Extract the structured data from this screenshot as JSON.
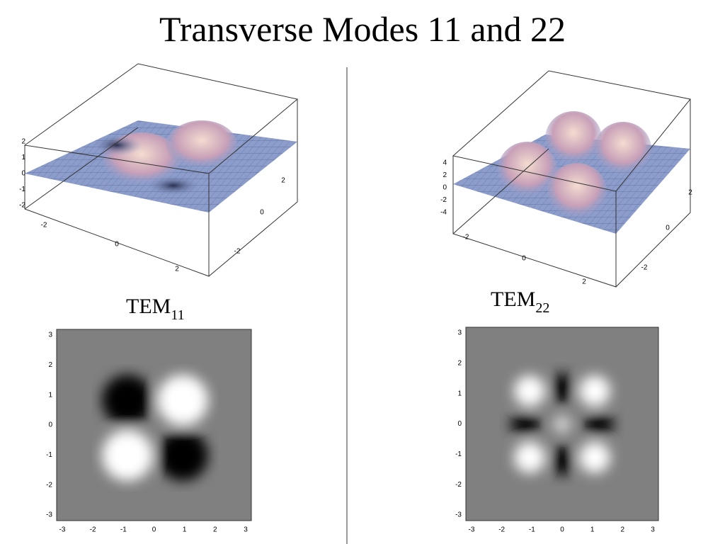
{
  "title": "Transverse Modes 11 and 22",
  "panels": [
    {
      "label": "TEM",
      "subscript": "11",
      "surface": {
        "z_ticks": [
          "2",
          "1",
          "0",
          "-1",
          "-2"
        ],
        "x_ticks": [
          "-2",
          "0",
          "2"
        ],
        "y_ticks": [
          "2",
          "0",
          "-2"
        ]
      },
      "density": {
        "y_ticks": [
          "3",
          "2",
          "1",
          "0",
          "-1",
          "-2",
          "-3"
        ],
        "x_ticks": [
          "-3",
          "-2",
          "-1",
          "0",
          "1",
          "2",
          "3"
        ]
      }
    },
    {
      "label": "TEM",
      "subscript": "22",
      "surface": {
        "z_ticks": [
          "4",
          "2",
          "0",
          "-2",
          "-4"
        ],
        "x_ticks": [
          "-2",
          "0",
          "2"
        ],
        "y_ticks": [
          "2",
          "0",
          "-2"
        ]
      },
      "density": {
        "y_ticks": [
          "3",
          "2",
          "1",
          "0",
          "-1",
          "-2",
          "-3"
        ],
        "x_ticks": [
          "-3",
          "-2",
          "-1",
          "0",
          "1",
          "2",
          "3"
        ]
      }
    }
  ]
}
